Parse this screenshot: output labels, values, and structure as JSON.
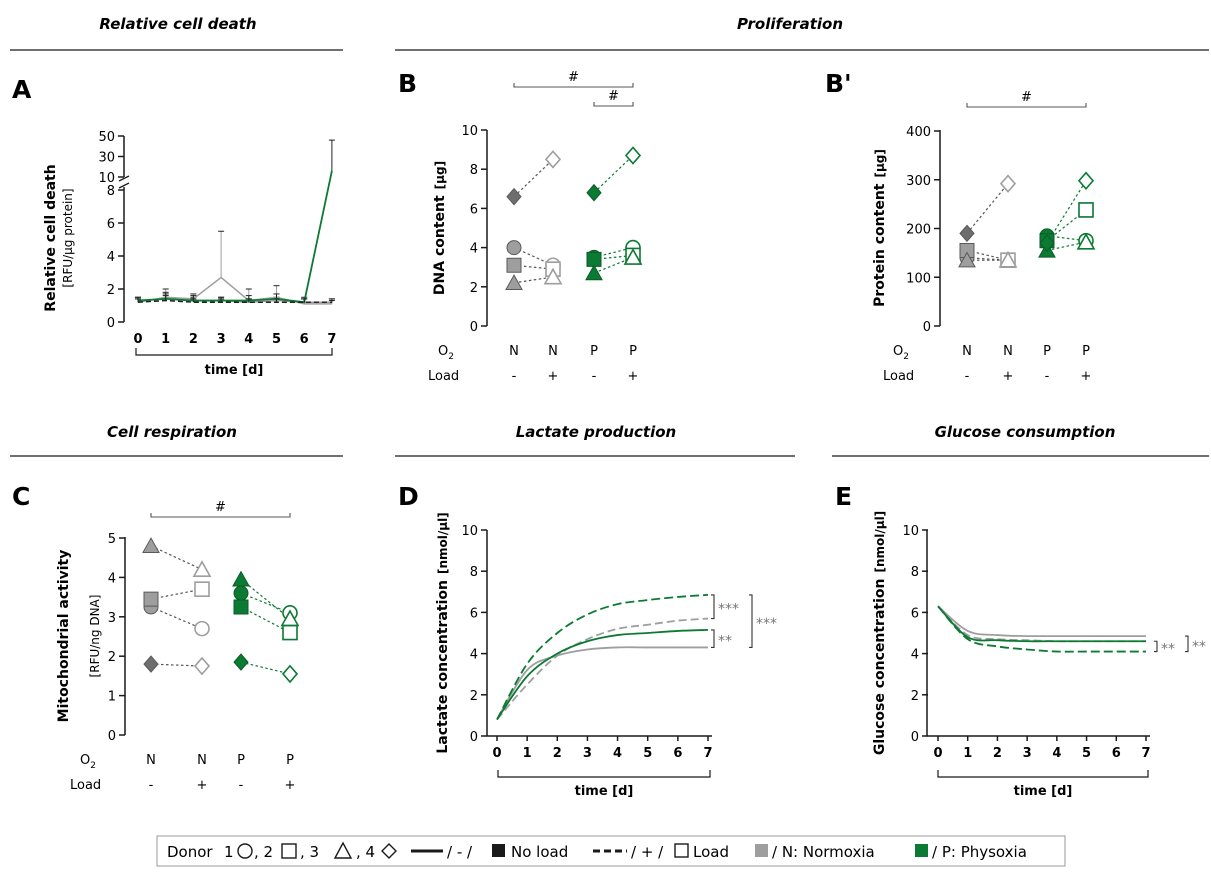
{
  "colors": {
    "normoxia": "#9e9e9e",
    "normoxia_dark": "#6e6e6e",
    "physoxia": "#0b7a33",
    "axis": "#1a1a1a"
  },
  "sections": {
    "cell_death": "Relative cell death",
    "proliferation": "Proliferation",
    "respiration": "Cell respiration",
    "lactate": "Lactate production",
    "glucose": "Glucose consumption"
  },
  "panel_letters": {
    "A": "A",
    "B": "B",
    "Bp": "B'",
    "C": "C",
    "D": "D",
    "E": "E"
  },
  "axis_text": {
    "o2_row": "O",
    "o2_sub": "2",
    "load_row": "Load",
    "time_label": "time [d]",
    "hash": "#",
    "A_ylabel": "Relative cell death",
    "A_yunit": "[RFU/µg protein]",
    "B_ylabel": "DNA content",
    "B_yunit": "[µg]",
    "Bp_ylabel": "Protein content",
    "Bp_yunit": "[µg]",
    "C_ylabel": "Mitochondrial activity",
    "C_yunit": "[RFU/ng DNA]",
    "D_ylabel": "Lactate concentration",
    "D_yunit": "[nmol/µl]",
    "E_ylabel": "Glucose concentration",
    "E_yunit": "[nmol/µl]"
  },
  "legend": {
    "donor_label": "Donor",
    "d1": "1",
    "d2": ", 2",
    "d3": ", 3",
    "no_load": "/ - /",
    "no_load_text": "No load",
    "load": "/ + /",
    "load_text": "Load",
    "normoxia_text": "/ N: Normoxia",
    "physoxia_text": "/ P: Physoxia"
  },
  "chart_data": [
    {
      "id": "A",
      "type": "line",
      "ylabel": "Relative cell death",
      "x": [
        0,
        1,
        2,
        3,
        4,
        5,
        6,
        7
      ],
      "xlabel": "time [d]",
      "y_ticks_lower": [
        0,
        2,
        4,
        6,
        8
      ],
      "y_ticks_upper": [
        10,
        30,
        50
      ],
      "axis_break": true,
      "series": [
        {
          "group": "normoxia-noload",
          "values": [
            1.3,
            1.4,
            1.3,
            1.3,
            1.2,
            1.3,
            1.2,
            1.2
          ],
          "errors": [
            0.2,
            0.3,
            0.2,
            0.2,
            0.2,
            0.2,
            0.2,
            0.2
          ]
        },
        {
          "group": "normoxia-load",
          "values": [
            1.2,
            1.5,
            1.4,
            2.7,
            1.3,
            1.5,
            1.1,
            1.1
          ],
          "errors": [
            0.2,
            0.5,
            0.3,
            2.8,
            0.7,
            0.7,
            0.3,
            0.2
          ]
        },
        {
          "group": "physoxia-noload",
          "values": [
            1.3,
            1.4,
            1.3,
            1.3,
            1.3,
            1.4,
            1.2,
            16
          ],
          "errors": [
            0.2,
            0.4,
            0.3,
            0.2,
            0.3,
            0.3,
            0.3,
            30
          ]
        },
        {
          "group": "physoxia-load",
          "values": [
            1.2,
            1.3,
            1.2,
            1.2,
            1.2,
            1.2,
            1.2,
            1.2
          ],
          "errors": [
            0.2,
            0.3,
            0.2,
            0.2,
            0.2,
            0.2,
            0.2,
            0.2
          ]
        }
      ]
    },
    {
      "id": "B",
      "type": "scatter",
      "ylabel": "DNA content",
      "ylim": [
        0,
        10
      ],
      "y_ticks": [
        0,
        2,
        4,
        6,
        8,
        10
      ],
      "categories": [
        {
          "o2": "N",
          "load": "-"
        },
        {
          "o2": "N",
          "load": "+"
        },
        {
          "o2": "P",
          "load": "-"
        },
        {
          "o2": "P",
          "load": "+"
        }
      ],
      "donors": [
        {
          "donor": 1,
          "values": [
            4.0,
            3.1,
            3.5,
            4.0
          ]
        },
        {
          "donor": 2,
          "values": [
            3.1,
            2.9,
            3.4,
            3.6
          ]
        },
        {
          "donor": 3,
          "values": [
            2.2,
            2.5,
            2.7,
            3.5
          ]
        },
        {
          "donor": 4,
          "values": [
            6.6,
            8.5,
            6.8,
            8.7
          ]
        }
      ],
      "significance": [
        {
          "from": 0,
          "to": 3,
          "label": "#"
        },
        {
          "from": 2,
          "to": 3,
          "label": "#"
        }
      ]
    },
    {
      "id": "Bp",
      "type": "scatter",
      "ylabel": "Protein content",
      "ylim": [
        0,
        400
      ],
      "y_ticks": [
        0,
        100,
        200,
        300,
        400
      ],
      "categories": [
        {
          "o2": "N",
          "load": "-"
        },
        {
          "o2": "N",
          "load": "+"
        },
        {
          "o2": "P",
          "load": "-"
        },
        {
          "o2": "P",
          "load": "+"
        }
      ],
      "donors": [
        {
          "donor": 1,
          "values": [
            140,
            135,
            185,
            175
          ]
        },
        {
          "donor": 2,
          "values": [
            155,
            135,
            175,
            238
          ]
        },
        {
          "donor": 3,
          "values": [
            135,
            135,
            155,
            172
          ]
        },
        {
          "donor": 4,
          "values": [
            190,
            292,
            170,
            298
          ]
        }
      ],
      "significance": [
        {
          "from": 0,
          "to": 3,
          "label": "#"
        }
      ]
    },
    {
      "id": "C",
      "type": "scatter",
      "ylabel": "Mitochondrial activity",
      "ylim": [
        0,
        5
      ],
      "y_ticks": [
        0,
        1,
        2,
        3,
        4,
        5
      ],
      "categories": [
        {
          "o2": "N",
          "load": "-"
        },
        {
          "o2": "N",
          "load": "+"
        },
        {
          "o2": "P",
          "load": "-"
        },
        {
          "o2": "P",
          "load": "+"
        }
      ],
      "donors": [
        {
          "donor": 1,
          "values": [
            3.25,
            2.7,
            3.6,
            3.1
          ]
        },
        {
          "donor": 2,
          "values": [
            3.45,
            3.7,
            3.25,
            2.6
          ]
        },
        {
          "donor": 3,
          "values": [
            4.8,
            4.2,
            3.95,
            2.95
          ]
        },
        {
          "donor": 4,
          "values": [
            1.8,
            1.75,
            1.85,
            1.55
          ]
        }
      ],
      "significance": [
        {
          "from": 0,
          "to": 3,
          "label": "#"
        }
      ]
    },
    {
      "id": "D",
      "type": "line",
      "ylabel": "Lactate concentration",
      "xlabel": "time [d]",
      "x": [
        0,
        1,
        2,
        3,
        4,
        5,
        6,
        7
      ],
      "ylim": [
        0,
        10
      ],
      "y_ticks": [
        0,
        2,
        4,
        6,
        8,
        10
      ],
      "series": [
        {
          "group": "normoxia-noload",
          "values": [
            0.8,
            3.2,
            3.9,
            4.2,
            4.3,
            4.3,
            4.3,
            4.3
          ]
        },
        {
          "group": "normoxia-load",
          "values": [
            0.8,
            2.5,
            3.9,
            4.7,
            5.2,
            5.4,
            5.6,
            5.7
          ]
        },
        {
          "group": "physoxia-noload",
          "values": [
            0.8,
            2.9,
            4.0,
            4.6,
            4.9,
            5.0,
            5.1,
            5.15
          ]
        },
        {
          "group": "physoxia-load",
          "values": [
            0.8,
            3.5,
            5.0,
            5.9,
            6.4,
            6.6,
            6.75,
            6.85
          ]
        }
      ],
      "significance": [
        "***",
        "**",
        "***"
      ]
    },
    {
      "id": "E",
      "type": "line",
      "ylabel": "Glucose concentration",
      "xlabel": "time [d]",
      "x": [
        0,
        1,
        2,
        3,
        4,
        5,
        6,
        7
      ],
      "ylim": [
        0,
        10
      ],
      "y_ticks": [
        0,
        2,
        4,
        6,
        8,
        10
      ],
      "series": [
        {
          "group": "normoxia-noload",
          "values": [
            6.3,
            5.1,
            4.9,
            4.85,
            4.85,
            4.85,
            4.85,
            4.85
          ]
        },
        {
          "group": "normoxia-load",
          "values": [
            6.3,
            4.9,
            4.7,
            4.65,
            4.6,
            4.6,
            4.6,
            4.6
          ]
        },
        {
          "group": "physoxia-noload",
          "values": [
            6.3,
            4.8,
            4.65,
            4.6,
            4.6,
            4.6,
            4.6,
            4.6
          ]
        },
        {
          "group": "physoxia-load",
          "values": [
            6.3,
            4.7,
            4.35,
            4.2,
            4.1,
            4.1,
            4.1,
            4.1
          ]
        }
      ],
      "significance": [
        "**",
        "**"
      ]
    }
  ]
}
